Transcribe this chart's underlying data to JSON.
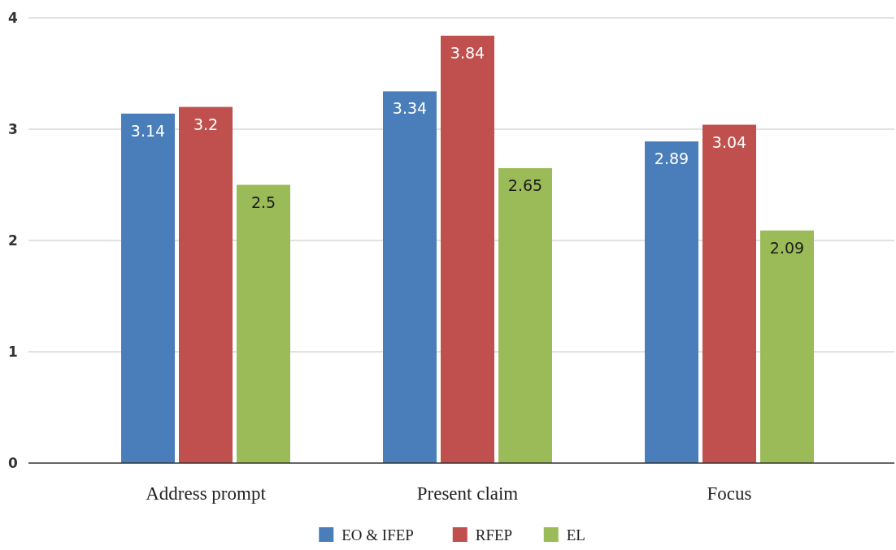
{
  "chart_data": {
    "type": "bar",
    "categories": [
      "Address prompt",
      "Present claim",
      "Focus"
    ],
    "series": [
      {
        "name": "EO & IFEP",
        "color": "#4a7ebb",
        "values": [
          3.14,
          3.34,
          2.89
        ]
      },
      {
        "name": "RFEP",
        "color": "#c0504d",
        "values": [
          3.2,
          3.84,
          3.04
        ]
      },
      {
        "name": "EL",
        "color": "#9bbb59",
        "values": [
          2.5,
          2.65,
          2.09
        ]
      }
    ],
    "ylim": [
      0,
      4
    ],
    "yticks": [
      0,
      1,
      2,
      3,
      4
    ],
    "grid": "y",
    "legend": "bottom",
    "data_labels": true
  }
}
